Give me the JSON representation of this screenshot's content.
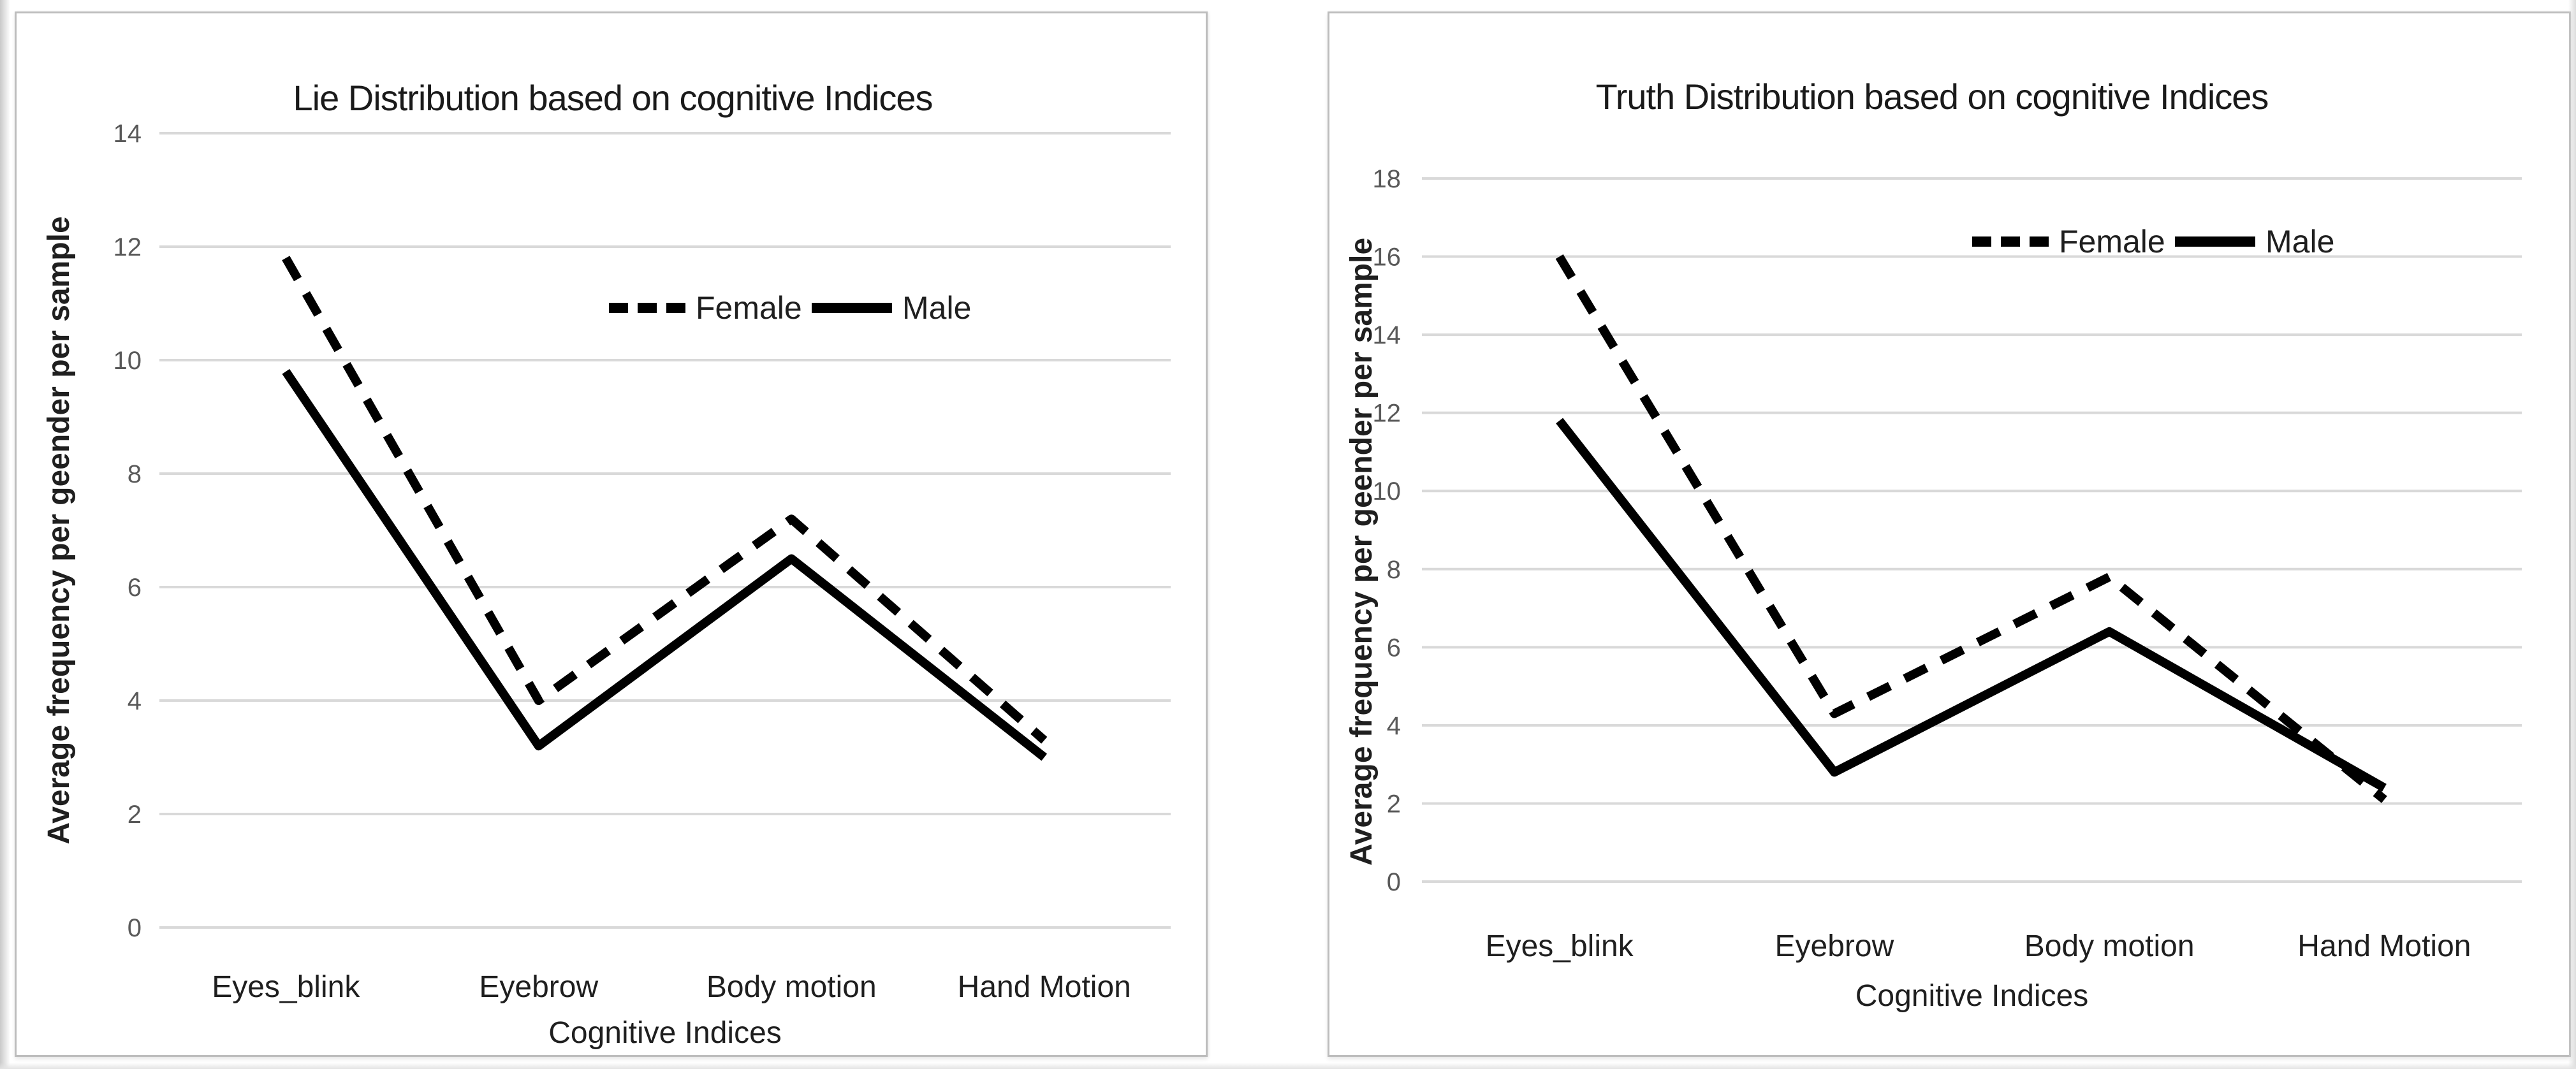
{
  "page": {
    "background_color": "#ffffff",
    "panel_border_color": "#bdbdbd"
  },
  "chart_data": [
    {
      "type": "line",
      "title": "Lie Distribution based on cognitive Indices",
      "xlabel": "Cognitive Indices",
      "ylabel": "Average frequency per geender per sample",
      "categories": [
        "Eyes_blink",
        "Eyebrow",
        "Body motion",
        "Hand Motion"
      ],
      "series": [
        {
          "name": "Female",
          "line_style": "dashed",
          "values": [
            11.8,
            4.0,
            7.2,
            3.3
          ]
        },
        {
          "name": "Male",
          "line_style": "solid",
          "values": [
            9.8,
            3.2,
            6.5,
            3.0
          ]
        }
      ],
      "ylim": [
        0,
        14
      ],
      "ytick_step": 2,
      "yticks": [
        0,
        2,
        4,
        6,
        8,
        10,
        12,
        14
      ],
      "grid": true,
      "legend_position": "inside-upper-middle",
      "colors": {
        "line": "#000000",
        "gridline": "#d9d9d9",
        "tick_label": "#595959",
        "text": "#1f1f1f"
      }
    },
    {
      "type": "line",
      "title": "Truth Distribution based on cognitive Indices",
      "xlabel": "Cognitive Indices",
      "ylabel": "Average frequency per geender per sample",
      "categories": [
        "Eyes_blink",
        "Eyebrow",
        "Body motion",
        "Hand Motion"
      ],
      "series": [
        {
          "name": "Female",
          "line_style": "dashed",
          "values": [
            16.0,
            4.3,
            7.8,
            2.1
          ]
        },
        {
          "name": "Male",
          "line_style": "solid",
          "values": [
            11.8,
            2.8,
            6.4,
            2.4
          ]
        }
      ],
      "ylim": [
        0,
        18
      ],
      "ytick_step": 2,
      "yticks": [
        0,
        2,
        4,
        6,
        8,
        10,
        12,
        14,
        16,
        18
      ],
      "grid": true,
      "legend_position": "inside-upper-middle",
      "colors": {
        "line": "#000000",
        "gridline": "#d9d9d9",
        "tick_label": "#595959",
        "text": "#1f1f1f"
      }
    }
  ]
}
